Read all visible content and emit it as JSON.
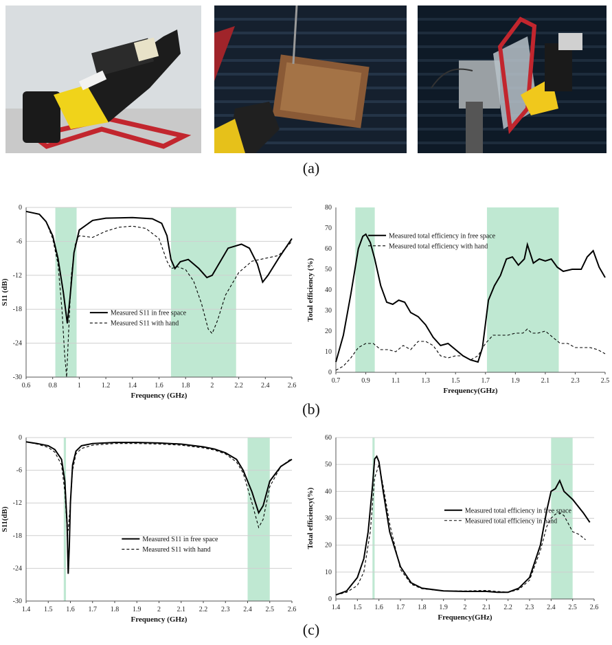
{
  "labels": {
    "a": "(a)",
    "b": "(b)",
    "c": "(c)"
  },
  "photos": [
    {
      "name": "hand-phantom-photo",
      "subject": "phantom hand holding device on red stand"
    },
    {
      "name": "anechoic-chamber-photo-1",
      "subject": "device in hand in anechoic chamber"
    },
    {
      "name": "anechoic-chamber-photo-2",
      "subject": "device on hand phantom in anechoic chamber"
    }
  ],
  "colors": {
    "band": "#bfe8d2",
    "grid": "#cfcfcf",
    "line": "#000000"
  },
  "chart_data": [
    {
      "type": "line",
      "xlabel": "Frequency (GHz)",
      "ylabel": "S11 (dB)",
      "xlim": [
        0.6,
        2.6
      ],
      "ylim": [
        -30,
        0
      ],
      "xticks": [
        "0.6",
        "0.8",
        "1",
        "1.2",
        "1.4",
        "1.6",
        "1.8",
        "2",
        "2.2",
        "2.4",
        "2.6"
      ],
      "yticks": [
        "0",
        "-6",
        "-12",
        "-18",
        "-24",
        "-30"
      ],
      "grid": "horizontal",
      "bands": [
        [
          0.82,
          0.98
        ],
        [
          1.69,
          2.18
        ]
      ],
      "legend_position": "center",
      "series": [
        {
          "name": "Measured S11 in free space",
          "style": "solid",
          "x": [
            0.6,
            0.7,
            0.75,
            0.8,
            0.84,
            0.88,
            0.91,
            0.93,
            0.96,
            1.0,
            1.1,
            1.2,
            1.4,
            1.55,
            1.62,
            1.66,
            1.69,
            1.72,
            1.76,
            1.82,
            1.9,
            1.96,
            2.0,
            2.05,
            2.12,
            2.22,
            2.28,
            2.34,
            2.38,
            2.42,
            2.5,
            2.6
          ],
          "y": [
            -0.7,
            -1.2,
            -2.5,
            -5,
            -9,
            -15,
            -20.5,
            -16,
            -8,
            -4,
            -2.3,
            -1.9,
            -1.8,
            -2,
            -2.8,
            -5,
            -9.2,
            -10.8,
            -9.6,
            -9.2,
            -10.8,
            -12.4,
            -12,
            -10,
            -7.2,
            -6.5,
            -7.2,
            -10,
            -13.2,
            -12,
            -9,
            -5.5
          ]
        },
        {
          "name": "Measured S11 with hand",
          "style": "dashed",
          "x": [
            0.6,
            0.7,
            0.75,
            0.8,
            0.84,
            0.87,
            0.89,
            0.905,
            0.92,
            0.94,
            0.97,
            1.0,
            1.1,
            1.2,
            1.3,
            1.4,
            1.5,
            1.6,
            1.66,
            1.69,
            1.74,
            1.8,
            1.86,
            1.92,
            1.97,
            2.0,
            2.04,
            2.1,
            2.2,
            2.3,
            2.4,
            2.5,
            2.6
          ],
          "y": [
            -0.7,
            -1.2,
            -2.5,
            -5.5,
            -10,
            -18,
            -26,
            -30,
            -22,
            -12,
            -6.5,
            -5,
            -5.3,
            -4.2,
            -3.5,
            -3.3,
            -3.7,
            -5.5,
            -9.5,
            -10.8,
            -10.5,
            -11,
            -13,
            -17,
            -21.5,
            -22.3,
            -20,
            -15.5,
            -11.5,
            -9.5,
            -9,
            -8.5,
            -6
          ]
        }
      ]
    },
    {
      "type": "line",
      "xlabel": "Frequency(GHz)",
      "ylabel": "Total efficiency (%)",
      "xlim": [
        0.7,
        2.5
      ],
      "ylim": [
        0,
        80
      ],
      "xticks": [
        "0.7",
        "0.9",
        "1.1",
        "1.3",
        "1.5",
        "1.7",
        "1.9",
        "2.1",
        "2.3",
        "2.5"
      ],
      "yticks": [
        "0",
        "10",
        "20",
        "30",
        "40",
        "50",
        "60",
        "70",
        "80"
      ],
      "grid": "none",
      "bands": [
        [
          0.83,
          0.96
        ],
        [
          1.71,
          2.19
        ]
      ],
      "legend_position": "top-left",
      "series": [
        {
          "name": "Measured total efficiency in free space",
          "style": "solid",
          "x": [
            0.7,
            0.75,
            0.8,
            0.85,
            0.88,
            0.9,
            0.93,
            0.96,
            1.0,
            1.04,
            1.08,
            1.12,
            1.16,
            1.2,
            1.25,
            1.3,
            1.35,
            1.4,
            1.45,
            1.5,
            1.55,
            1.6,
            1.65,
            1.68,
            1.72,
            1.76,
            1.8,
            1.84,
            1.88,
            1.92,
            1.96,
            1.98,
            2.02,
            2.06,
            2.1,
            2.14,
            2.18,
            2.22,
            2.28,
            2.34,
            2.38,
            2.42,
            2.46,
            2.5
          ],
          "y": [
            5,
            18,
            38,
            60,
            66,
            67,
            63,
            55,
            42,
            34,
            33,
            35,
            34,
            29,
            27,
            23,
            17,
            13,
            14,
            11,
            8,
            6,
            5,
            12,
            35,
            42,
            47,
            55,
            56,
            52,
            55,
            62,
            53,
            55,
            54,
            55,
            51,
            49,
            50,
            50,
            56,
            59,
            51,
            46
          ]
        },
        {
          "name": "Measured total efficiency with hand",
          "style": "dashed",
          "x": [
            0.7,
            0.75,
            0.8,
            0.85,
            0.9,
            0.95,
            1.0,
            1.05,
            1.1,
            1.15,
            1.2,
            1.25,
            1.3,
            1.35,
            1.4,
            1.45,
            1.5,
            1.55,
            1.6,
            1.65,
            1.7,
            1.75,
            1.8,
            1.85,
            1.9,
            1.95,
            1.98,
            2.01,
            2.05,
            2.1,
            2.15,
            2.2,
            2.25,
            2.3,
            2.35,
            2.4,
            2.45,
            2.5
          ],
          "y": [
            1,
            3,
            7,
            12,
            14,
            14,
            11,
            11,
            10,
            13,
            11,
            15,
            15,
            13,
            8,
            7,
            8,
            8,
            6,
            8,
            14,
            18,
            18,
            18,
            19,
            19,
            21,
            19,
            19,
            20,
            17,
            14,
            14,
            12,
            12,
            12,
            11,
            9
          ]
        }
      ]
    },
    {
      "type": "line",
      "xlabel": "Frequency (GHz)",
      "ylabel": "S11(dB)",
      "xlim": [
        1.4,
        2.6
      ],
      "ylim": [
        -30,
        0
      ],
      "xticks": [
        "1.4",
        "1.5",
        "1.6",
        "1.7",
        "1.8",
        "1.9",
        "2",
        "2.1",
        "2.2",
        "2.3",
        "2.4",
        "2.5",
        "2.6"
      ],
      "yticks": [
        "0",
        "-6",
        "-12",
        "-18",
        "-24",
        "-30"
      ],
      "grid": "horizontal",
      "bands": [
        [
          1.57,
          1.58
        ],
        [
          2.4,
          2.5
        ]
      ],
      "legend_position": "center-right",
      "series": [
        {
          "name": "Measured S11 in free space",
          "style": "solid",
          "x": [
            1.4,
            1.45,
            1.5,
            1.53,
            1.56,
            1.575,
            1.585,
            1.59,
            1.595,
            1.6,
            1.61,
            1.625,
            1.65,
            1.7,
            1.8,
            1.9,
            2.0,
            2.1,
            2.2,
            2.25,
            2.3,
            2.35,
            2.38,
            2.42,
            2.45,
            2.47,
            2.5,
            2.55,
            2.6
          ],
          "y": [
            -0.8,
            -1.1,
            -1.5,
            -2.2,
            -4,
            -8,
            -16,
            -25,
            -20,
            -12,
            -5,
            -2.5,
            -1.5,
            -1.1,
            -0.9,
            -0.9,
            -1,
            -1.2,
            -1.7,
            -2.1,
            -2.8,
            -4,
            -6,
            -10,
            -13.8,
            -12.5,
            -8,
            -5.3,
            -4
          ]
        },
        {
          "name": "Measured S11 with hand",
          "style": "dashed",
          "x": [
            1.4,
            1.45,
            1.5,
            1.53,
            1.56,
            1.575,
            1.585,
            1.59,
            1.6,
            1.61,
            1.625,
            1.65,
            1.7,
            1.8,
            1.9,
            2.0,
            2.1,
            2.2,
            2.25,
            2.3,
            2.35,
            2.38,
            2.42,
            2.45,
            2.47,
            2.5,
            2.55,
            2.6
          ],
          "y": [
            -0.8,
            -1.2,
            -1.8,
            -2.7,
            -5,
            -10,
            -17,
            -17,
            -12,
            -6,
            -3,
            -2,
            -1.4,
            -1.1,
            -1.1,
            -1.2,
            -1.4,
            -1.9,
            -2.3,
            -3,
            -4.5,
            -6.5,
            -12,
            -16.5,
            -15,
            -9,
            -5.3,
            -3.8
          ]
        }
      ]
    },
    {
      "type": "line",
      "xlabel": "Frequency(GHz)",
      "ylabel": "Total efficiency(%)",
      "xlim": [
        1.4,
        2.6
      ],
      "ylim": [
        0,
        60
      ],
      "xticks": [
        "1.4",
        "1.5",
        "1.6",
        "1.7",
        "1.8",
        "1.9",
        "2",
        "2.1",
        "2.2",
        "2.3",
        "2.4",
        "2.5",
        "2.6"
      ],
      "yticks": [
        "0",
        "10",
        "20",
        "30",
        "40",
        "50",
        "60"
      ],
      "grid": "horizontal",
      "bands": [
        [
          1.57,
          1.58
        ],
        [
          2.4,
          2.5
        ]
      ],
      "legend_position": "center-right",
      "series": [
        {
          "name": "Measured total efficiency in free space",
          "style": "solid",
          "x": [
            1.4,
            1.45,
            1.5,
            1.53,
            1.55,
            1.57,
            1.58,
            1.59,
            1.6,
            1.62,
            1.65,
            1.7,
            1.75,
            1.8,
            1.9,
            2.0,
            2.1,
            2.15,
            2.2,
            2.25,
            2.3,
            2.35,
            2.38,
            2.4,
            2.42,
            2.44,
            2.46,
            2.5,
            2.55,
            2.58
          ],
          "y": [
            1.5,
            3,
            8,
            15,
            25,
            42,
            52,
            53,
            51,
            40,
            25,
            12,
            6,
            4,
            3,
            2.8,
            2.8,
            2.5,
            2.5,
            4,
            8,
            20,
            33,
            40,
            41,
            44,
            40,
            37,
            32,
            28.5
          ]
        },
        {
          "name": "Measured total efficiency in hand",
          "style": "dashed",
          "x": [
            1.4,
            1.45,
            1.5,
            1.53,
            1.56,
            1.58,
            1.6,
            1.62,
            1.65,
            1.7,
            1.75,
            1.8,
            1.9,
            2.0,
            2.1,
            2.15,
            2.2,
            2.25,
            2.3,
            2.35,
            2.38,
            2.4,
            2.42,
            2.44,
            2.46,
            2.48,
            2.5,
            2.53,
            2.56
          ],
          "y": [
            1.5,
            2.5,
            5,
            10,
            25,
            45,
            50,
            42,
            28,
            11,
            5.5,
            3.8,
            3,
            3,
            3.2,
            2.8,
            2.5,
            3.5,
            7,
            18,
            27,
            30,
            31.5,
            32,
            31,
            28,
            25,
            24,
            22
          ]
        }
      ]
    }
  ]
}
